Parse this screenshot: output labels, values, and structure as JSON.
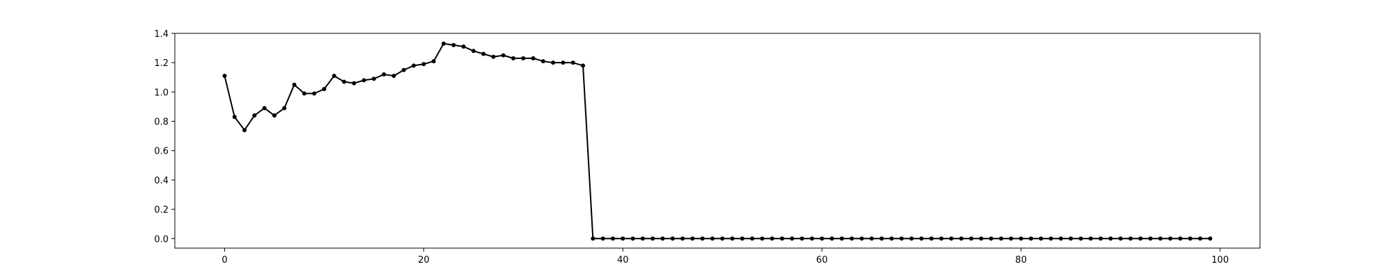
{
  "chart_data": {
    "type": "line",
    "title": "",
    "xlabel": "",
    "ylabel": "",
    "xlim": [
      -5,
      104
    ],
    "ylim": [
      -0.065,
      1.4
    ],
    "x_ticks": [
      0,
      20,
      40,
      60,
      80,
      100
    ],
    "y_ticks": [
      0.0,
      0.2,
      0.4,
      0.6,
      0.8,
      1.0,
      1.2,
      1.4
    ],
    "x_tick_labels": [
      "0",
      "20",
      "40",
      "60",
      "80",
      "100"
    ],
    "y_tick_labels": [
      "0.0",
      "0.2",
      "0.4",
      "0.6",
      "0.8",
      "1.0",
      "1.2",
      "1.4"
    ],
    "grid": false,
    "line_color": "#000000",
    "marker": "dot",
    "series": [
      {
        "x": [
          0,
          1,
          2,
          3,
          4,
          5,
          6,
          7,
          8,
          9,
          10,
          11,
          12,
          13,
          14,
          15,
          16,
          17,
          18,
          19,
          20,
          21,
          22,
          23,
          24,
          25,
          26,
          27,
          28,
          29,
          30,
          31,
          32,
          33,
          34,
          35,
          36,
          37,
          38,
          39,
          40,
          41,
          42,
          43,
          44,
          45,
          46,
          47,
          48,
          49,
          50,
          51,
          52,
          53,
          54,
          55,
          56,
          57,
          58,
          59,
          60,
          61,
          62,
          63,
          64,
          65,
          66,
          67,
          68,
          69,
          70,
          71,
          72,
          73,
          74,
          75,
          76,
          77,
          78,
          79,
          80,
          81,
          82,
          83,
          84,
          85,
          86,
          87,
          88,
          89,
          90,
          91,
          92,
          93,
          94,
          95,
          96,
          97,
          98,
          99
        ],
        "values": [
          1.11,
          0.83,
          0.74,
          0.84,
          0.89,
          0.84,
          0.89,
          1.05,
          0.99,
          0.99,
          1.02,
          1.11,
          1.07,
          1.06,
          1.08,
          1.09,
          1.12,
          1.11,
          1.15,
          1.18,
          1.19,
          1.21,
          1.33,
          1.32,
          1.31,
          1.28,
          1.26,
          1.24,
          1.25,
          1.23,
          1.23,
          1.23,
          1.21,
          1.2,
          1.2,
          1.2,
          1.18,
          0,
          0,
          0,
          0,
          0,
          0,
          0,
          0,
          0,
          0,
          0,
          0,
          0,
          0,
          0,
          0,
          0,
          0,
          0,
          0,
          0,
          0,
          0,
          0,
          0,
          0,
          0,
          0,
          0,
          0,
          0,
          0,
          0,
          0,
          0,
          0,
          0,
          0,
          0,
          0,
          0,
          0,
          0,
          0,
          0,
          0,
          0,
          0,
          0,
          0,
          0,
          0,
          0,
          0,
          0,
          0,
          0,
          0,
          0,
          0,
          0,
          0,
          0
        ]
      }
    ]
  }
}
